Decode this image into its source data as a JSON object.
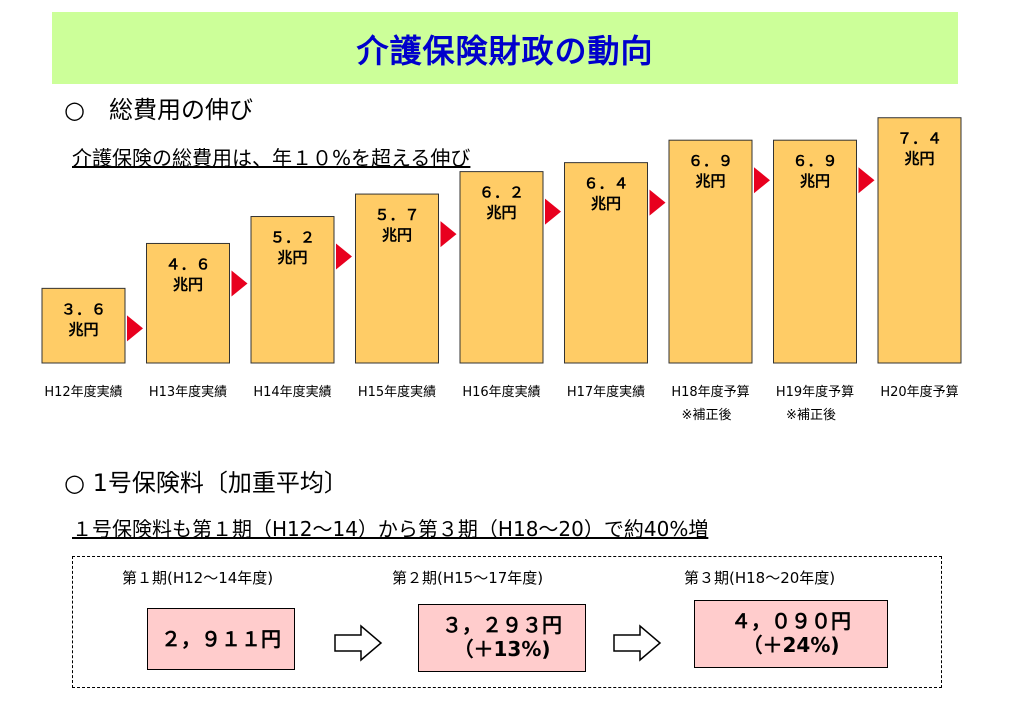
{
  "page": {
    "title": "介護保険財政の動向",
    "section1_heading": "○　総費用の伸び",
    "section1_subtitle": "介護保険の総費用は、年１０%を超える伸び",
    "section2_heading": "○ 1号保険料〔加重平均〕",
    "section2_subtitle": "１号保険料も第１期（H12〜14）から第３期（H18〜20）で約40%増"
  },
  "colors": {
    "title_bg": "#ccff99",
    "title_text": "#0000cc",
    "bar_fill": "#ffcc66",
    "arrow_fill": "#e8001e",
    "box_fill": "#ffcccc"
  },
  "chart_data": {
    "type": "bar",
    "unit": "兆円",
    "categories": [
      {
        "label": "H12年度実績",
        "note": ""
      },
      {
        "label": "H13年度実績",
        "note": ""
      },
      {
        "label": "H14年度実績",
        "note": ""
      },
      {
        "label": "H15年度実績",
        "note": ""
      },
      {
        "label": "H16年度実績",
        "note": ""
      },
      {
        "label": "H17年度実績",
        "note": ""
      },
      {
        "label": "H18年度予算",
        "note": "※補正後"
      },
      {
        "label": "H19年度予算",
        "note": "※補正後"
      },
      {
        "label": "H20年度予算",
        "note": ""
      }
    ],
    "values": [
      3.6,
      4.6,
      5.2,
      5.7,
      6.2,
      6.4,
      6.9,
      6.9,
      7.4
    ],
    "value_labels": [
      "３．６",
      "４．６",
      "５．２",
      "５．７",
      "６．２",
      "６．４",
      "６．９",
      "６．９",
      "７．４"
    ]
  },
  "premiums": {
    "periods": [
      {
        "label": "第１期(H12〜14年度)",
        "amount": "２，９１１円",
        "change": ""
      },
      {
        "label": "第２期(H15〜17年度)",
        "amount": "３，２９３円",
        "change": "（＋13%)"
      },
      {
        "label": "第３期(H18〜20年度)",
        "amount": "４，０９０円",
        "change": "（＋24%)"
      }
    ]
  }
}
